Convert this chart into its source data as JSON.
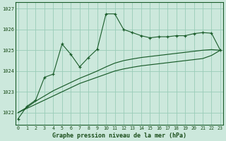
{
  "title": "Graphe pression niveau de la mer (hPa)",
  "background_color": "#cce8dc",
  "plot_bg_color": "#cce8dc",
  "grid_color": "#99ccb8",
  "line_color": "#1a5c2a",
  "xlim": [
    -0.3,
    23.3
  ],
  "ylim": [
    1021.4,
    1027.3
  ],
  "yticks": [
    1022,
    1023,
    1024,
    1025,
    1026,
    1027
  ],
  "xticks": [
    0,
    1,
    2,
    3,
    4,
    5,
    6,
    7,
    8,
    9,
    10,
    11,
    12,
    13,
    14,
    15,
    16,
    17,
    18,
    19,
    20,
    21,
    22,
    23
  ],
  "series1_x": [
    0,
    1,
    2,
    3,
    4,
    5,
    6,
    7,
    8,
    9,
    10,
    11,
    12,
    13,
    14,
    15,
    16,
    17,
    18,
    19,
    20,
    21,
    22,
    23
  ],
  "series1_y": [
    1021.7,
    1022.3,
    1022.6,
    1023.7,
    1023.85,
    1025.3,
    1024.8,
    1024.2,
    1024.65,
    1025.05,
    1026.75,
    1026.75,
    1026.0,
    1025.85,
    1025.7,
    1025.6,
    1025.65,
    1025.65,
    1025.7,
    1025.7,
    1025.8,
    1025.85,
    1025.82,
    1025.0
  ],
  "series2_x": [
    0,
    1,
    2,
    3,
    4,
    5,
    6,
    7,
    8,
    9,
    10,
    11,
    12,
    13,
    14,
    15,
    16,
    17,
    18,
    19,
    20,
    21,
    22,
    23
  ],
  "series2_y": [
    1022.0,
    1022.25,
    1022.55,
    1022.8,
    1023.05,
    1023.25,
    1023.45,
    1023.65,
    1023.82,
    1024.0,
    1024.2,
    1024.38,
    1024.5,
    1024.58,
    1024.65,
    1024.7,
    1024.75,
    1024.8,
    1024.85,
    1024.9,
    1024.95,
    1025.0,
    1025.03,
    1025.0
  ],
  "series3_x": [
    0,
    1,
    2,
    3,
    4,
    5,
    6,
    7,
    8,
    9,
    10,
    11,
    12,
    13,
    14,
    15,
    16,
    17,
    18,
    19,
    20,
    21,
    22,
    23
  ],
  "series3_y": [
    1022.0,
    1022.2,
    1022.4,
    1022.6,
    1022.8,
    1023.0,
    1023.2,
    1023.4,
    1023.55,
    1023.7,
    1023.85,
    1024.0,
    1024.1,
    1024.18,
    1024.25,
    1024.3,
    1024.35,
    1024.4,
    1024.45,
    1024.5,
    1024.55,
    1024.6,
    1024.75,
    1025.0
  ]
}
